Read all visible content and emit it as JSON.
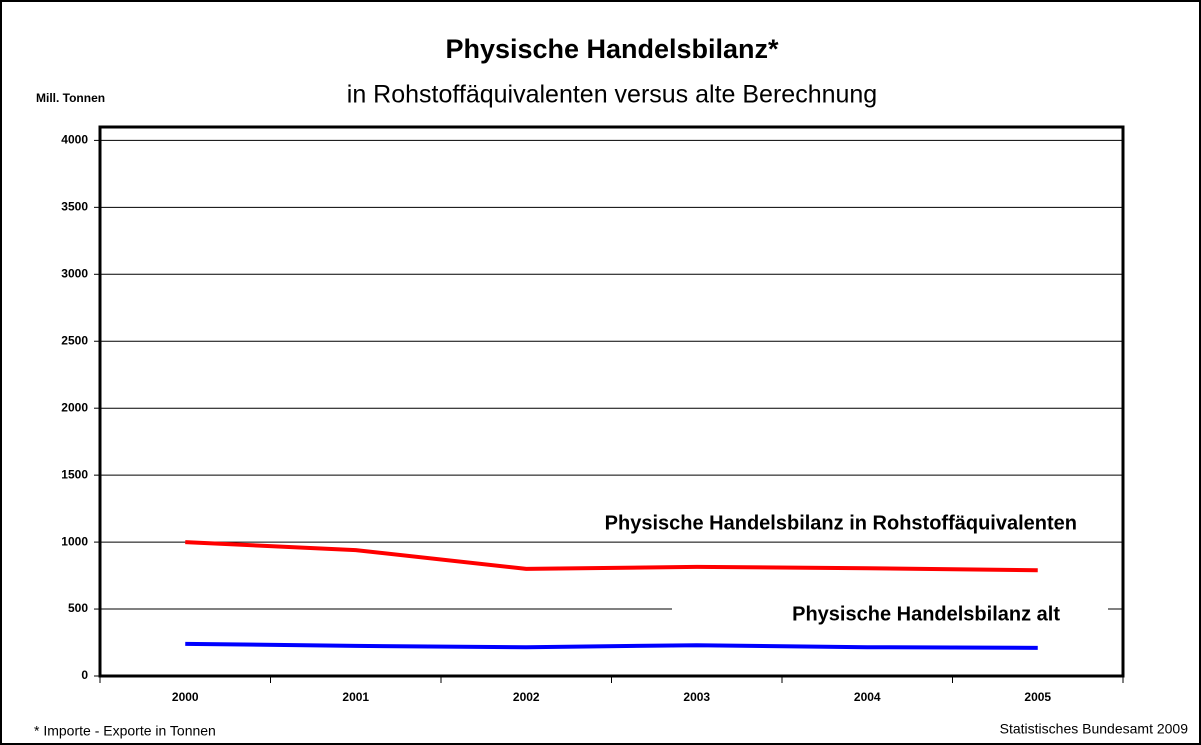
{
  "chart_data": {
    "type": "line",
    "title": "Physische Handelsbilanz*",
    "subtitle": "in Rohstoffäquivalenten versus alte Berechnung",
    "y_label": "Mill. Tonnen",
    "footnote": "* Importe - Exporte in Tonnen",
    "source": "Statistisches Bundesamt 2009",
    "categories": [
      "2000",
      "2001",
      "2002",
      "2003",
      "2004",
      "2005"
    ],
    "series": [
      {
        "name": "Physische Handelsbilanz in Rohstoffäquivalenten",
        "color": "#ff0000",
        "values": [
          1000,
          940,
          800,
          815,
          805,
          790
        ]
      },
      {
        "name": "Physische Handelsbilanz alt",
        "color": "#0000ff",
        "values": [
          240,
          225,
          215,
          230,
          215,
          210
        ]
      }
    ],
    "ylim": [
      0,
      4100
    ],
    "yticks": [
      0,
      500,
      1000,
      1500,
      2000,
      2500,
      3000,
      3500,
      4000
    ],
    "grid": true
  }
}
